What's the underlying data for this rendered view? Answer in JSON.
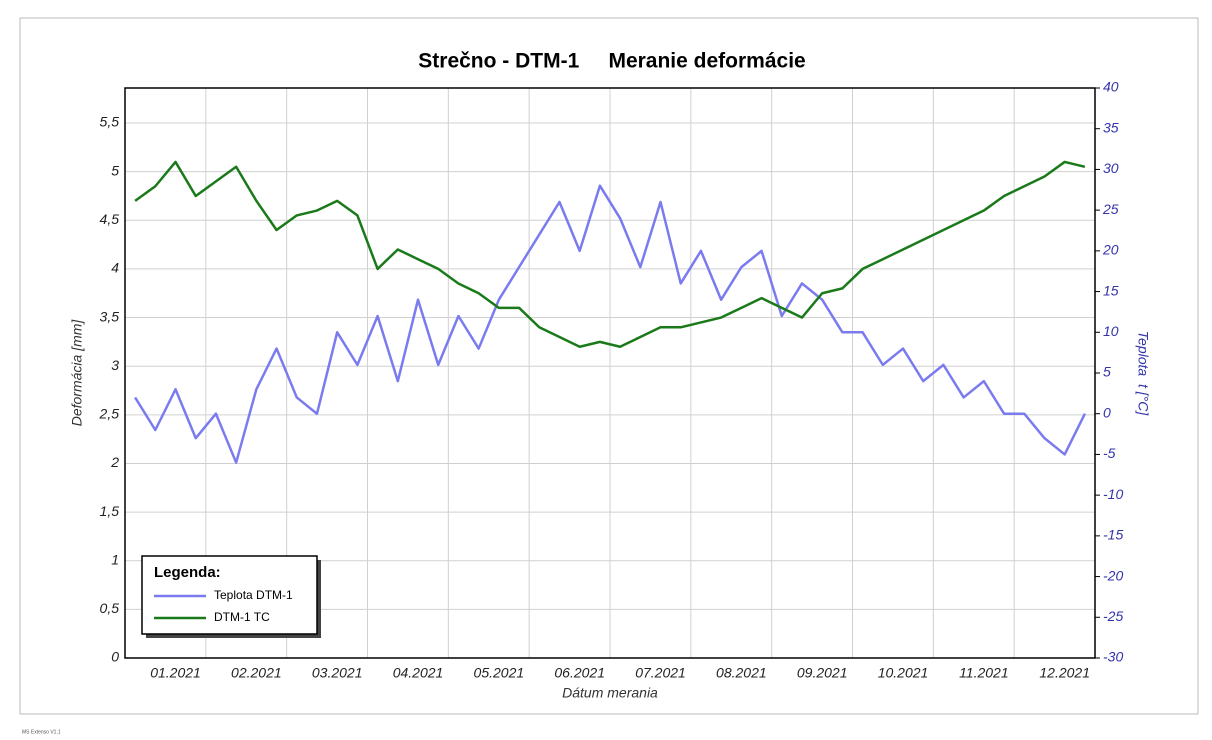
{
  "chart_data": {
    "type": "line",
    "title": "Strečno - DTM-1     Meranie deformácie",
    "xlabel": "Dátum merania",
    "ylabel": "Deformácia [mm]",
    "y2label": "Teplota  t [°C]",
    "legend_title": "Legenda:",
    "legend_position": "lower left",
    "footer": "MS Extenso V1.1",
    "grid": true,
    "x": [
      null,
      null,
      "01.2021",
      null,
      null,
      null,
      "02.2021",
      null,
      null,
      null,
      "03.2021",
      null,
      null,
      null,
      "04.2021",
      null,
      null,
      null,
      "05.2021",
      null,
      null,
      null,
      "06.2021",
      null,
      null,
      null,
      "07.2021",
      null,
      null,
      null,
      "08.2021",
      null,
      null,
      null,
      "09.2021",
      null,
      null,
      null,
      "10.2021",
      null,
      null,
      null,
      "11.2021",
      null,
      null,
      null,
      "12.2021",
      null
    ],
    "ylim": [
      0,
      5.86
    ],
    "yticks": [
      0,
      {
        "value": 0.5,
        "label": "0,5"
      },
      1,
      {
        "value": 1.5,
        "label": "1,5"
      },
      2,
      {
        "value": 2.5,
        "label": "2,5"
      },
      3,
      {
        "value": 3.5,
        "label": "3,5"
      },
      4,
      {
        "value": 4.5,
        "label": "4,5"
      },
      5,
      {
        "value": 5.5,
        "label": "5,5"
      }
    ],
    "y2lim": [
      -30,
      40
    ],
    "y2ticks": [
      -30,
      -25,
      -20,
      -15,
      -10,
      -5,
      0,
      5,
      10,
      15,
      20,
      25,
      30,
      35,
      40
    ],
    "series": [
      {
        "name": "Teplota DTM-1",
        "color": "#7b7bf0",
        "axis": "y2",
        "values": [
          2,
          -2,
          3,
          -3,
          0,
          -6,
          3,
          8,
          2,
          0,
          10,
          6,
          12,
          4,
          14,
          6,
          12,
          8,
          14,
          18,
          22,
          26,
          20,
          28,
          24,
          18,
          26,
          16,
          20,
          14,
          18,
          20,
          12,
          16,
          14,
          10,
          10,
          6,
          8,
          4,
          6,
          2,
          4,
          0,
          0,
          -3,
          -5,
          0
        ]
      },
      {
        "name": "DTM-1 TC",
        "color": "#1a7a1a",
        "axis": "y",
        "values": [
          4.7,
          4.85,
          5.1,
          4.75,
          4.9,
          5.05,
          4.7,
          4.4,
          4.55,
          4.6,
          4.7,
          4.55,
          4.0,
          4.2,
          4.1,
          4.0,
          3.85,
          3.75,
          3.6,
          3.6,
          3.4,
          3.3,
          3.2,
          3.25,
          3.2,
          3.3,
          3.4,
          3.4,
          3.45,
          3.5,
          3.6,
          3.7,
          3.6,
          3.5,
          3.75,
          3.8,
          4.0,
          4.1,
          4.2,
          4.3,
          4.4,
          4.5,
          4.6,
          4.75,
          4.85,
          4.95,
          5.1,
          5.05
        ]
      }
    ]
  }
}
